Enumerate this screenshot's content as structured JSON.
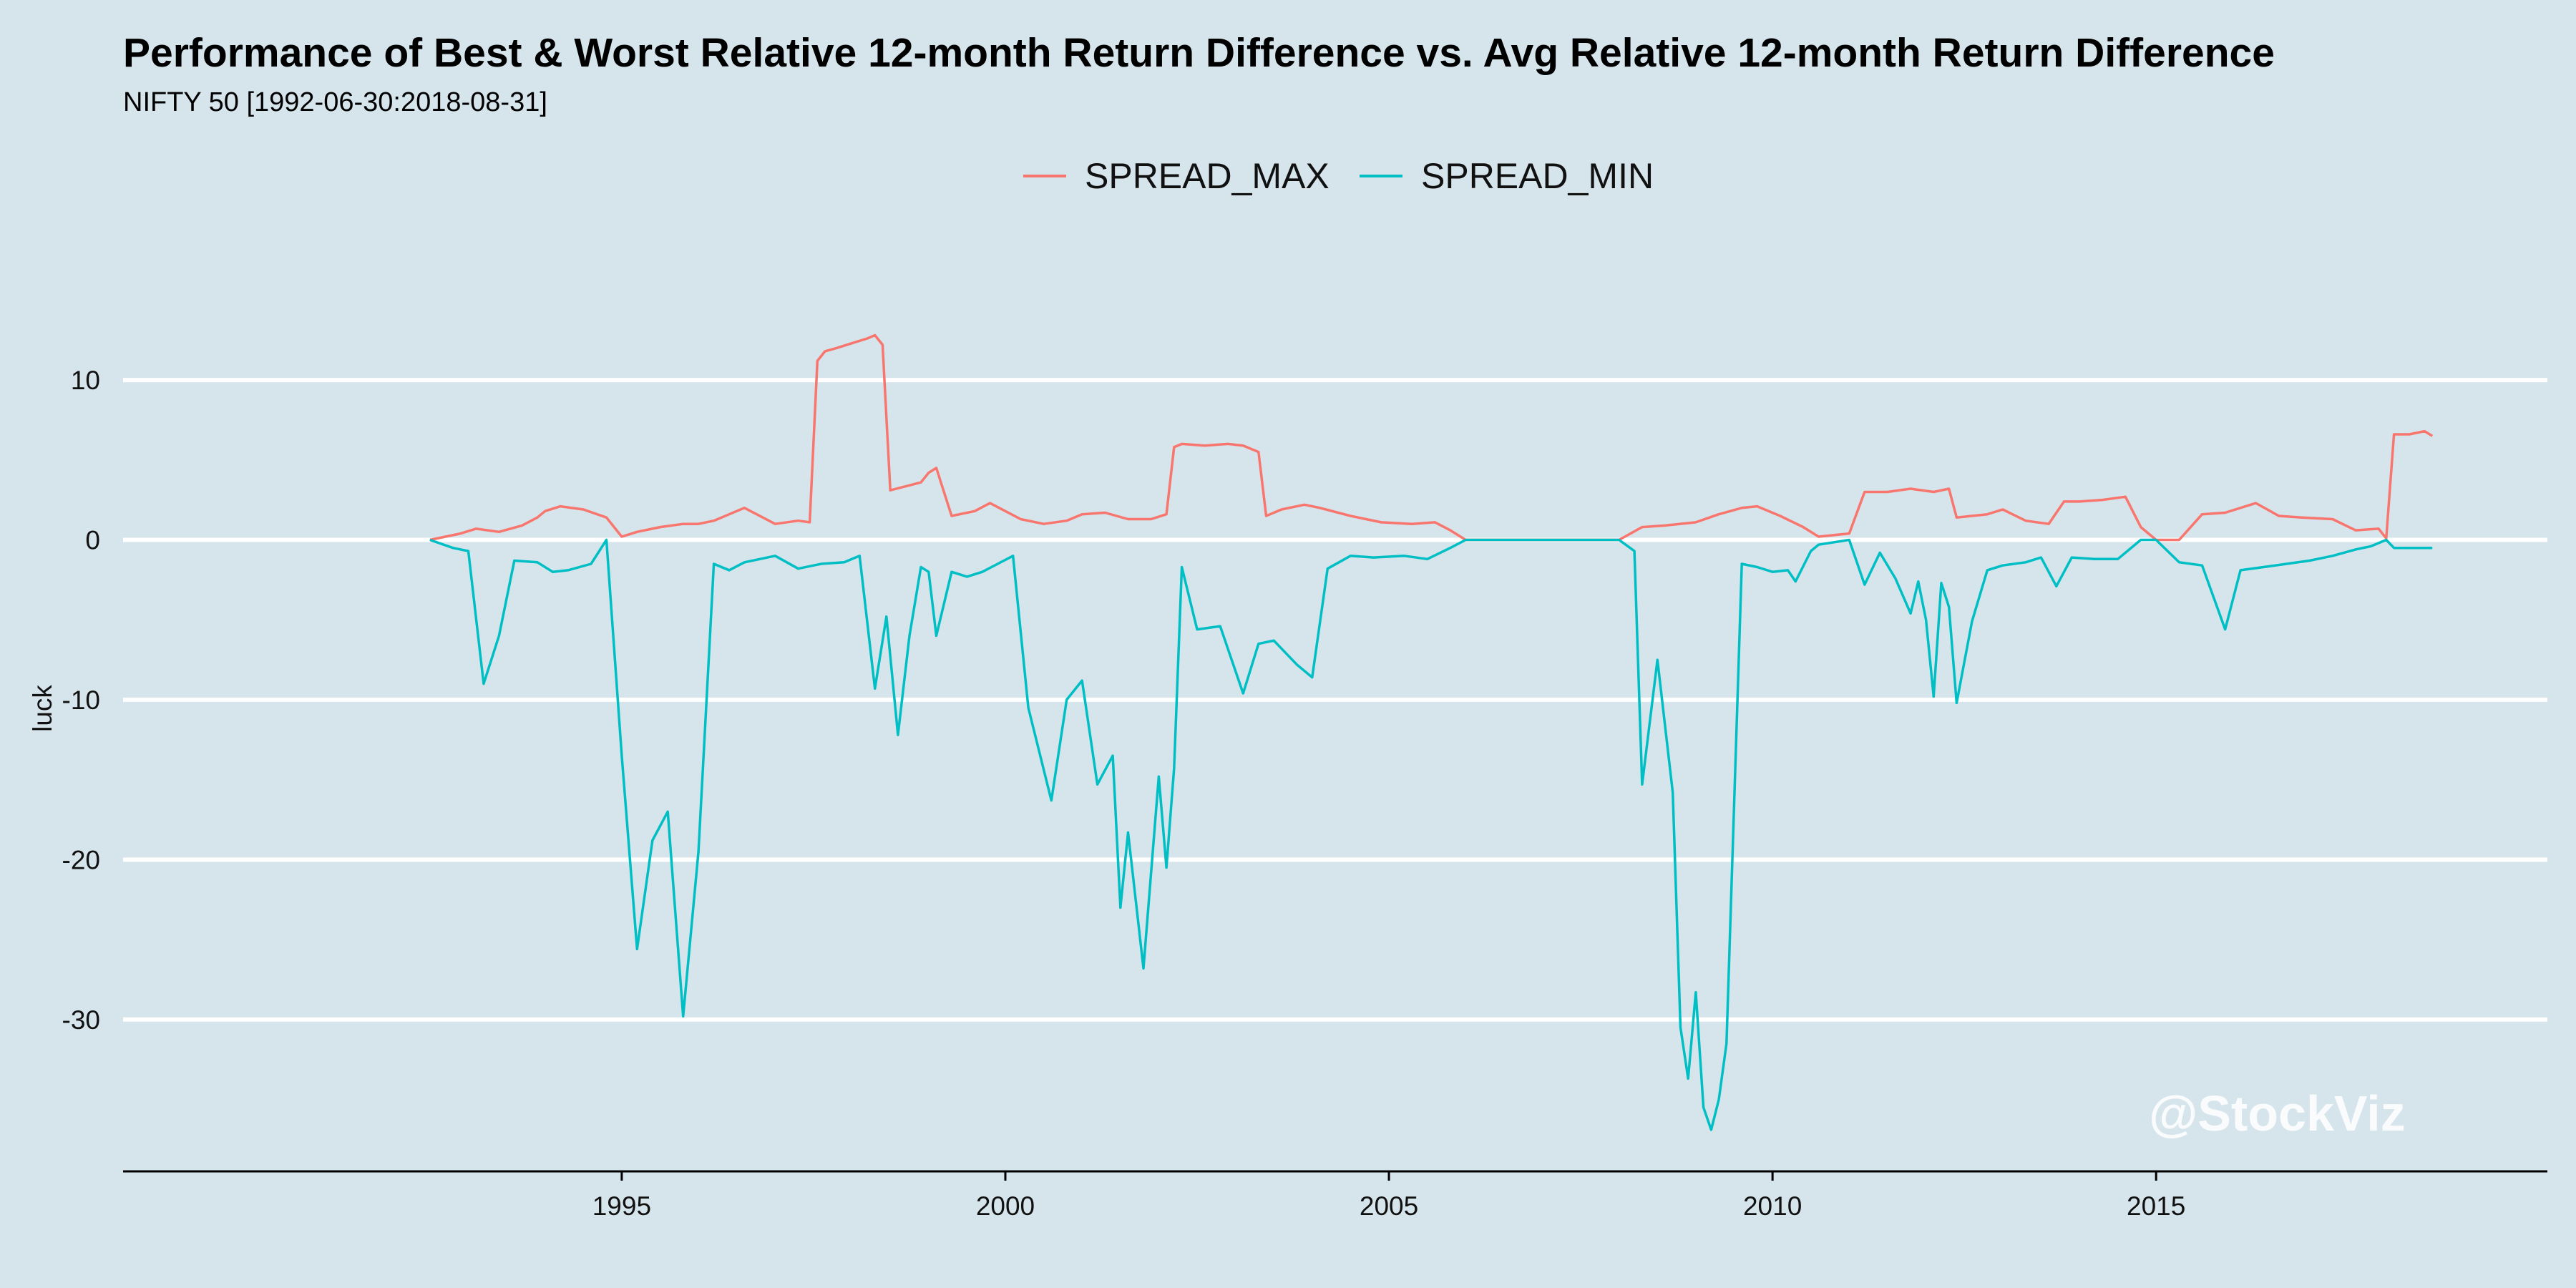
{
  "chart_data": {
    "type": "line",
    "title": "Performance of Best & Worst Relative 12-month Return Difference vs. Avg Relative 12-month Return Difference",
    "subtitle": "NIFTY 50 [1992-06-30:2018-08-31]",
    "ylabel": "luck",
    "xlabel": "",
    "watermark": "@StockViz",
    "xlim": [
      1988.5,
      2020.1
    ],
    "ylim": [
      -39.5,
      19.0
    ],
    "x_ticks": [
      1995,
      2000,
      2005,
      2010,
      2015
    ],
    "y_ticks": [
      10,
      0,
      -10,
      -20,
      -30
    ],
    "grid": true,
    "legend_position": "top",
    "series": [
      {
        "name": "SPREAD_MAX",
        "color": "#f8766d",
        "x": [
          1992.5,
          1992.9,
          1993.1,
          1993.4,
          1993.7,
          1993.9,
          1994.0,
          1994.2,
          1994.5,
          1994.8,
          1995.0,
          1995.2,
          1995.5,
          1995.8,
          1996.0,
          1996.2,
          1996.6,
          1997.0,
          1997.3,
          1997.45,
          1997.55,
          1997.65,
          1997.8,
          1998.0,
          1998.2,
          1998.3,
          1998.4,
          1998.5,
          1998.9,
          1999.0,
          1999.1,
          1999.3,
          1999.6,
          1999.8,
          2000.0,
          2000.2,
          2000.5,
          2000.8,
          2001.0,
          2001.3,
          2001.6,
          2001.9,
          2002.1,
          2002.2,
          2002.3,
          2002.6,
          2002.9,
          2003.1,
          2003.3,
          2003.4,
          2003.6,
          2003.9,
          2004.1,
          2004.5,
          2004.9,
          2005.3,
          2005.6,
          2005.8,
          2006.0,
          2008.0,
          2008.3,
          2008.6,
          2009.0,
          2009.3,
          2009.6,
          2009.8,
          2010.1,
          2010.4,
          2010.6,
          2011.0,
          2011.2,
          2011.5,
          2011.8,
          2012.1,
          2012.3,
          2012.4,
          2012.8,
          2013.0,
          2013.3,
          2013.6,
          2013.8,
          2014.0,
          2014.3,
          2014.6,
          2014.8,
          2015.0,
          2015.3,
          2015.6,
          2015.9,
          2016.3,
          2016.6,
          2016.9,
          2017.3,
          2017.6,
          2017.9,
          2018.0,
          2018.1,
          2018.3,
          2018.5,
          2018.6
        ],
        "y": [
          0,
          0.4,
          0.7,
          0.5,
          0.9,
          1.4,
          1.8,
          2.1,
          1.9,
          1.4,
          0.2,
          0.5,
          0.8,
          1.0,
          1.0,
          1.2,
          2.0,
          1.0,
          1.2,
          1.1,
          11.2,
          11.8,
          12.0,
          12.3,
          12.6,
          12.8,
          12.2,
          3.1,
          3.6,
          4.2,
          4.5,
          1.5,
          1.8,
          2.3,
          1.8,
          1.3,
          1.0,
          1.2,
          1.6,
          1.7,
          1.3,
          1.3,
          1.6,
          5.8,
          6.0,
          5.9,
          6.0,
          5.9,
          5.5,
          1.5,
          1.9,
          2.2,
          2.0,
          1.5,
          1.1,
          1.0,
          1.1,
          0.6,
          0,
          0,
          0.8,
          0.9,
          1.1,
          1.6,
          2.0,
          2.1,
          1.5,
          0.8,
          0.2,
          0.4,
          3.0,
          3.0,
          3.2,
          3.0,
          3.2,
          1.4,
          1.6,
          1.9,
          1.2,
          1.0,
          2.4,
          2.4,
          2.5,
          2.7,
          0.8,
          0,
          0,
          1.6,
          1.7,
          2.3,
          1.5,
          1.4,
          1.3,
          0.6,
          0.7,
          0.1,
          6.6,
          6.6,
          6.8,
          6.5
        ]
      },
      {
        "name": "SPREAD_MIN",
        "color": "#00bfc4",
        "x": [
          1992.5,
          1992.8,
          1993.0,
          1993.2,
          1993.4,
          1993.6,
          1993.9,
          1994.1,
          1994.3,
          1994.6,
          1994.8,
          1995.0,
          1995.2,
          1995.4,
          1995.6,
          1995.8,
          1996.0,
          1996.2,
          1996.4,
          1996.6,
          1996.8,
          1997.0,
          1997.3,
          1997.6,
          1997.9,
          1998.1,
          1998.3,
          1998.45,
          1998.6,
          1998.75,
          1998.9,
          1999.0,
          1999.1,
          1999.3,
          1999.5,
          1999.7,
          1999.9,
          2000.1,
          2000.3,
          2000.6,
          2000.8,
          2001.0,
          2001.2,
          2001.4,
          2001.5,
          2001.6,
          2001.8,
          2002.0,
          2002.1,
          2002.2,
          2002.3,
          2002.5,
          2002.8,
          2003.1,
          2003.3,
          2003.5,
          2003.8,
          2004.0,
          2004.2,
          2004.5,
          2004.8,
          2005.2,
          2005.5,
          2005.8,
          2006.0,
          2008.0,
          2008.2,
          2008.3,
          2008.5,
          2008.7,
          2008.8,
          2008.9,
          2009.0,
          2009.1,
          2009.2,
          2009.3,
          2009.4,
          2009.6,
          2009.8,
          2010.0,
          2010.2,
          2010.3,
          2010.5,
          2010.6,
          2011.0,
          2011.2,
          2011.4,
          2011.6,
          2011.8,
          2011.9,
          2012.0,
          2012.1,
          2012.2,
          2012.3,
          2012.4,
          2012.6,
          2012.8,
          2013.0,
          2013.3,
          2013.5,
          2013.7,
          2013.9,
          2014.2,
          2014.5,
          2014.8,
          2015.0,
          2015.3,
          2015.6,
          2015.9,
          2016.1,
          2016.4,
          2016.7,
          2017.0,
          2017.3,
          2017.6,
          2017.8,
          2018.0,
          2018.1,
          2018.3,
          2018.6
        ],
        "y": [
          0,
          -0.5,
          -0.7,
          -9.0,
          -6.0,
          -1.3,
          -1.4,
          -2.0,
          -1.9,
          -1.5,
          0,
          -13.5,
          -25.6,
          -18.8,
          -17.0,
          -29.8,
          -19.5,
          -1.5,
          -1.9,
          -1.4,
          -1.2,
          -1.0,
          -1.8,
          -1.5,
          -1.4,
          -1.0,
          -9.3,
          -4.8,
          -12.2,
          -6.0,
          -1.7,
          -2.0,
          -6.0,
          -2.0,
          -2.3,
          -2.0,
          -1.5,
          -1.0,
          -10.5,
          -16.3,
          -10.0,
          -8.8,
          -15.3,
          -13.5,
          -23.0,
          -18.3,
          -26.8,
          -14.8,
          -20.5,
          -14.3,
          -1.7,
          -5.6,
          -5.4,
          -9.6,
          -6.5,
          -6.3,
          -7.8,
          -8.6,
          -1.8,
          -1.0,
          -1.1,
          -1.0,
          -1.2,
          -0.5,
          0,
          0,
          -0.7,
          -15.3,
          -7.5,
          -15.8,
          -30.5,
          -33.7,
          -28.3,
          -35.5,
          -36.9,
          -35.0,
          -31.5,
          -1.5,
          -1.7,
          -2.0,
          -1.9,
          -2.6,
          -0.7,
          -0.3,
          0,
          -2.8,
          -0.8,
          -2.4,
          -4.6,
          -2.6,
          -5.0,
          -9.8,
          -2.7,
          -4.2,
          -10.2,
          -5.1,
          -1.9,
          -1.6,
          -1.4,
          -1.1,
          -2.9,
          -1.1,
          -1.2,
          -1.2,
          0,
          0,
          -1.4,
          -1.6,
          -5.6,
          -1.9,
          -1.7,
          -1.5,
          -1.3,
          -1.0,
          -0.6,
          -0.4,
          0,
          -0.5,
          -0.5,
          -0.5
        ]
      }
    ]
  }
}
